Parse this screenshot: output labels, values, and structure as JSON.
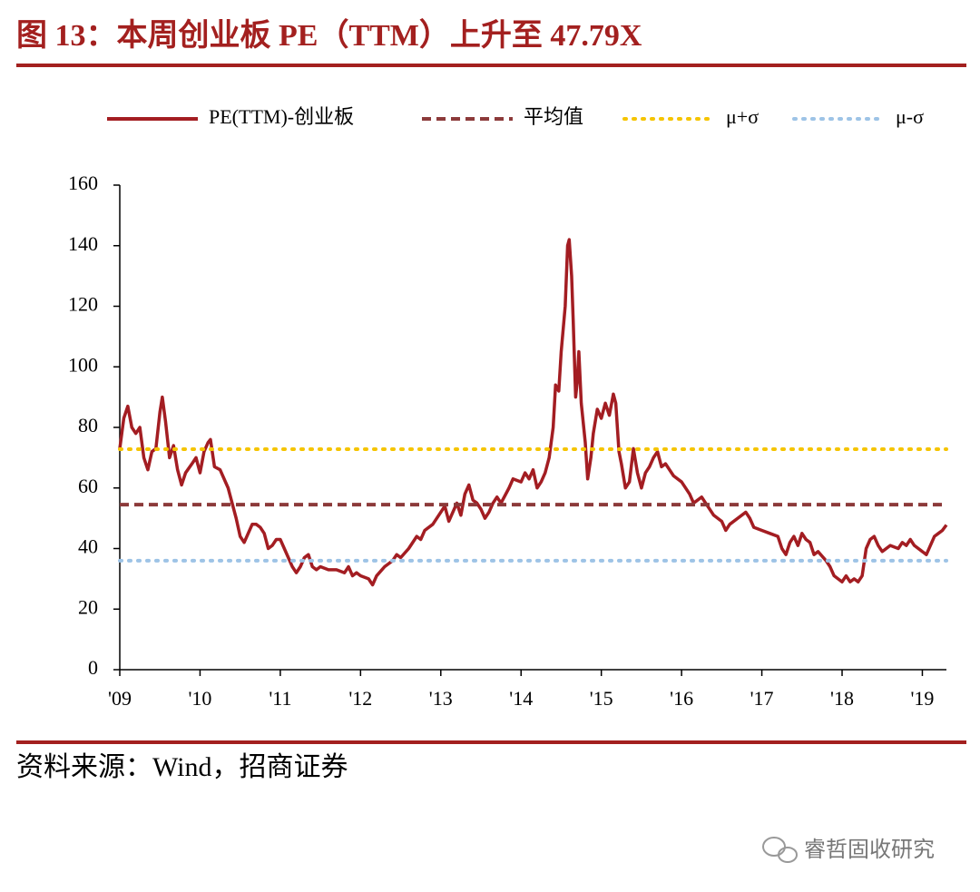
{
  "chart_data": {
    "type": "line",
    "title": "图 13：本周创业板 PE（TTM）上升至 47.79X",
    "source": "资料来源：Wind，招商证券",
    "watermark": "睿哲固收研究",
    "xlim": [
      2009,
      2019.3
    ],
    "xticks": [
      {
        "value": 2009,
        "label": "'09"
      },
      {
        "value": 2010,
        "label": "'10"
      },
      {
        "value": 2011,
        "label": "'11"
      },
      {
        "value": 2012,
        "label": "'12"
      },
      {
        "value": 2013,
        "label": "'13"
      },
      {
        "value": 2014,
        "label": "'14"
      },
      {
        "value": 2015,
        "label": "'15"
      },
      {
        "value": 2016,
        "label": "'16"
      },
      {
        "value": 2017,
        "label": "'17"
      },
      {
        "value": 2018,
        "label": "'18"
      },
      {
        "value": 2019,
        "label": "'19"
      }
    ],
    "ylim": [
      0,
      160
    ],
    "yticks": [
      0,
      20,
      40,
      60,
      80,
      100,
      120,
      140,
      160
    ],
    "x": [
      2009.0,
      2009.05,
      2009.1,
      2009.15,
      2009.2,
      2009.25,
      2009.3,
      2009.35,
      2009.4,
      2009.45,
      2009.5,
      2009.53,
      2009.57,
      2009.62,
      2009.67,
      2009.72,
      2009.77,
      2009.82,
      2009.9,
      2009.95,
      2010.0,
      2010.05,
      2010.1,
      2010.13,
      2010.18,
      2010.25,
      2010.3,
      2010.35,
      2010.4,
      2010.45,
      2010.5,
      2010.55,
      2010.6,
      2010.65,
      2010.7,
      2010.75,
      2010.8,
      2010.85,
      2010.9,
      2010.95,
      2011.0,
      2011.05,
      2011.1,
      2011.15,
      2011.2,
      2011.25,
      2011.3,
      2011.35,
      2011.4,
      2011.45,
      2011.5,
      2011.6,
      2011.7,
      2011.8,
      2011.85,
      2011.9,
      2011.95,
      2012.0,
      2012.1,
      2012.15,
      2012.2,
      2012.3,
      2012.4,
      2012.45,
      2012.5,
      2012.6,
      2012.7,
      2012.75,
      2012.8,
      2012.9,
      2013.0,
      2013.05,
      2013.1,
      2013.15,
      2013.2,
      2013.25,
      2013.3,
      2013.35,
      2013.4,
      2013.45,
      2013.5,
      2013.55,
      2013.6,
      2013.65,
      2013.7,
      2013.75,
      2013.85,
      2013.9,
      2014.0,
      2014.05,
      2014.1,
      2014.15,
      2014.2,
      2014.25,
      2014.3,
      2014.35,
      2014.4,
      2014.43,
      2014.47,
      2014.5,
      2014.55,
      2014.58,
      2014.6,
      2014.63,
      2014.65,
      2014.68,
      2014.7,
      2014.72,
      2014.75,
      2014.8,
      2014.83,
      2014.87,
      2014.9,
      2014.95,
      2015.0,
      2015.05,
      2015.1,
      2015.15,
      2015.18,
      2015.22,
      2015.25,
      2015.3,
      2015.35,
      2015.4,
      2015.45,
      2015.5,
      2015.55,
      2015.6,
      2015.65,
      2015.7,
      2015.75,
      2015.8,
      2015.9,
      2016.0,
      2016.1,
      2016.15,
      2016.25,
      2016.3,
      2016.4,
      2016.5,
      2016.55,
      2016.6,
      2016.7,
      2016.8,
      2016.85,
      2016.9,
      2017.0,
      2017.1,
      2017.2,
      2017.25,
      2017.3,
      2017.35,
      2017.4,
      2017.45,
      2017.5,
      2017.55,
      2017.6,
      2017.65,
      2017.7,
      2017.8,
      2017.85,
      2017.9,
      2017.95,
      2018.0,
      2018.05,
      2018.1,
      2018.15,
      2018.2,
      2018.25,
      2018.3,
      2018.35,
      2018.4,
      2018.45,
      2018.5,
      2018.55,
      2018.6,
      2018.7,
      2018.75,
      2018.8,
      2018.85,
      2018.9,
      2019.0,
      2019.05,
      2019.1,
      2019.15,
      2019.2,
      2019.25,
      2019.3
    ],
    "series": [
      {
        "name": "PE(TTM)-创业板",
        "color": "#a31d22",
        "style": "solid",
        "values": [
          73,
          83,
          87,
          80,
          78,
          80,
          70,
          66,
          72,
          73,
          85,
          90,
          82,
          70,
          74,
          66,
          61,
          65,
          68,
          70,
          65,
          72,
          75,
          76,
          67,
          66,
          63,
          60,
          55,
          50,
          44,
          42,
          45,
          48,
          48,
          47,
          45,
          40,
          41,
          43,
          43,
          40,
          37,
          34,
          32,
          34,
          37,
          38,
          34,
          33,
          34,
          33,
          33,
          32,
          34,
          31,
          32,
          31,
          30,
          28,
          31,
          34,
          36,
          38,
          37,
          40,
          44,
          43,
          46,
          48,
          52,
          54,
          49,
          52,
          55,
          51,
          58,
          61,
          56,
          55,
          53,
          50,
          52,
          55,
          57,
          55,
          60,
          63,
          62,
          65,
          63,
          66,
          60,
          62,
          65,
          70,
          80,
          94,
          92,
          105,
          120,
          140,
          142,
          130,
          115,
          90,
          95,
          105,
          88,
          75,
          63,
          70,
          78,
          86,
          83,
          88,
          84,
          91,
          88,
          72,
          68,
          60,
          62,
          73,
          65,
          60,
          65,
          67,
          70,
          72,
          67,
          68,
          64,
          62,
          58,
          55,
          57,
          55,
          51,
          49,
          46,
          48,
          50,
          52,
          50,
          47,
          46,
          45,
          44,
          40,
          38,
          42,
          44,
          41,
          45,
          43,
          42,
          38,
          39,
          36,
          34,
          31,
          30,
          29,
          31,
          29,
          30,
          29,
          31,
          40,
          43,
          44,
          41,
          39,
          40,
          41,
          40,
          42,
          41,
          43,
          41,
          39,
          38,
          41,
          44,
          45,
          46,
          47.79
        ]
      },
      {
        "name": "平均值",
        "color": "#8c3a3a",
        "style": "dashed",
        "value": 54.5
      },
      {
        "name": "μ+σ",
        "color": "#f5c400",
        "style": "dotted",
        "value": 72.8
      },
      {
        "name": "μ-σ",
        "color": "#9dc3e6",
        "style": "dotted",
        "value": 36.0
      }
    ]
  }
}
